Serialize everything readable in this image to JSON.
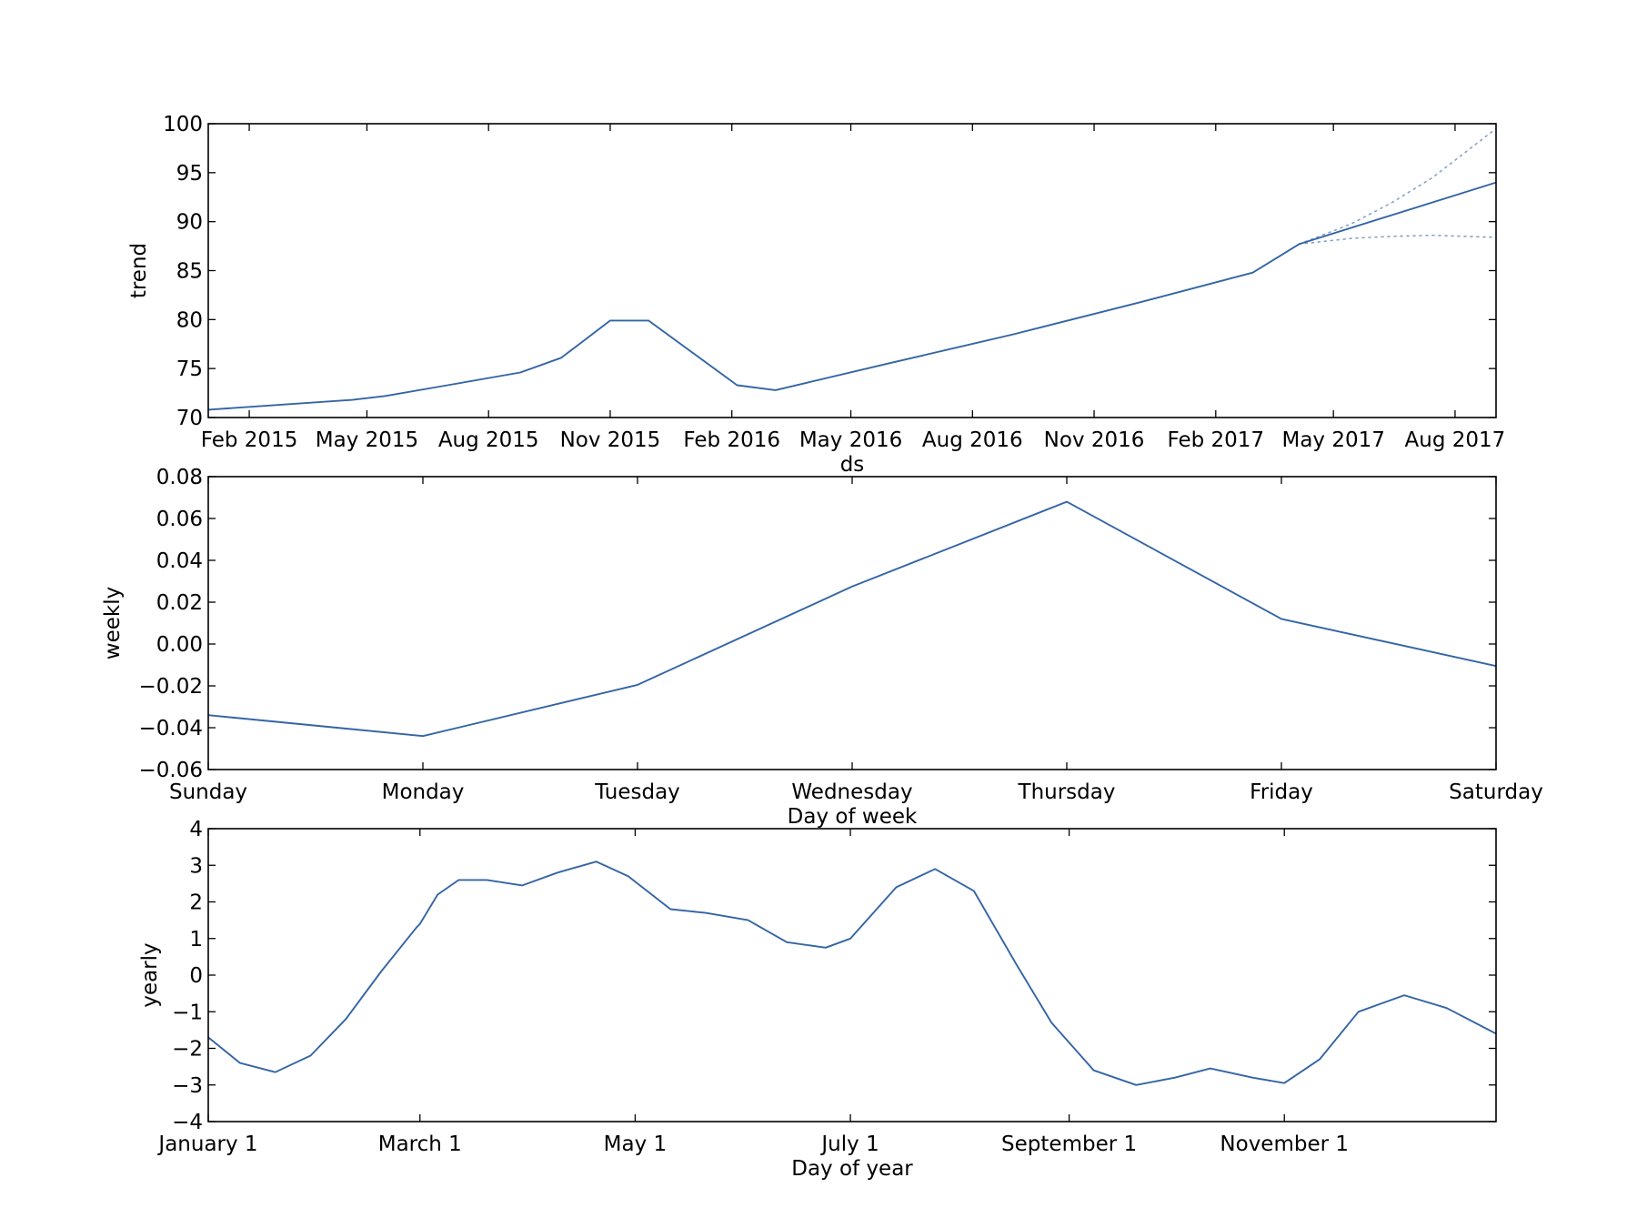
{
  "colors": {
    "line": "#3465a4",
    "bound": "#3465a4",
    "axes": "#000000"
  },
  "chart_data": [
    {
      "type": "line",
      "id": "trend",
      "xlabel": "ds",
      "ylabel": "trend",
      "x_axis": "date",
      "xlim": [
        "2015-01-01",
        "2017-09-01"
      ],
      "ylim": [
        70,
        100
      ],
      "yticks": [
        70,
        75,
        80,
        85,
        90,
        95,
        100
      ],
      "ytick_labels": [
        "70",
        "75",
        "80",
        "85",
        "90",
        "95",
        "100"
      ],
      "xticks": [
        "2015-02-01",
        "2015-05-01",
        "2015-08-01",
        "2015-11-01",
        "2016-02-01",
        "2016-05-01",
        "2016-08-01",
        "2016-11-01",
        "2017-02-01",
        "2017-05-01",
        "2017-08-01"
      ],
      "xtick_labels": [
        "Feb 2015",
        "May 2015",
        "Aug 2015",
        "Nov 2015",
        "Feb 2016",
        "May 2016",
        "Aug 2016",
        "Nov 2016",
        "Feb 2017",
        "May 2017",
        "Aug 2017"
      ],
      "grid": false,
      "series": [
        {
          "x": [
            "2015-01-01",
            "2015-04-20",
            "2015-05-15",
            "2015-07-01",
            "2015-08-25",
            "2015-09-25",
            "2015-11-01",
            "2015-11-30",
            "2016-02-05",
            "2016-03-05",
            "2016-06-01",
            "2016-09-01",
            "2016-12-01",
            "2017-03-01",
            "2017-04-05",
            "2017-09-01"
          ],
          "y": [
            70.8,
            71.8,
            72.2,
            73.3,
            74.6,
            76.1,
            79.9,
            79.9,
            73.3,
            72.8,
            75.6,
            78.5,
            81.6,
            84.8,
            87.7,
            94.0
          ]
        },
        {
          "style": "dotted",
          "x": [
            "2017-04-05",
            "2017-05-15",
            "2017-06-15",
            "2017-07-15",
            "2017-09-01"
          ],
          "y": [
            87.7,
            89.8,
            92.0,
            94.5,
            99.5
          ]
        },
        {
          "style": "dotted",
          "x": [
            "2017-04-05",
            "2017-05-15",
            "2017-06-15",
            "2017-07-15",
            "2017-09-01"
          ],
          "y": [
            87.7,
            88.3,
            88.5,
            88.6,
            88.4
          ]
        }
      ]
    },
    {
      "type": "line",
      "id": "weekly",
      "xlabel": "Day of week",
      "ylabel": "weekly",
      "categories": [
        "Sunday",
        "Monday",
        "Tuesday",
        "Wednesday",
        "Thursday",
        "Friday",
        "Saturday"
      ],
      "ylim": [
        -0.06,
        0.08
      ],
      "yticks": [
        -0.06,
        -0.04,
        -0.02,
        0.0,
        0.02,
        0.04,
        0.06,
        0.08
      ],
      "ytick_labels": [
        "−0.06",
        "−0.04",
        "−0.02",
        "0.00",
        "0.02",
        "0.04",
        "0.06",
        "0.08"
      ],
      "grid": false,
      "series": [
        {
          "values": [
            -0.034,
            -0.044,
            -0.0195,
            0.0275,
            0.068,
            0.012,
            -0.0105
          ]
        }
      ]
    },
    {
      "type": "line",
      "id": "yearly",
      "xlabel": "Day of year",
      "ylabel": "yearly",
      "x_axis": "day-of-year",
      "xlim": [
        1,
        366
      ],
      "ylim": [
        -4,
        4
      ],
      "yticks": [
        -4,
        -3,
        -2,
        -1,
        0,
        1,
        2,
        3,
        4
      ],
      "ytick_labels": [
        "−4",
        "−3",
        "−2",
        "−1",
        "0",
        "1",
        "2",
        "3",
        "4"
      ],
      "xticks": [
        1,
        61,
        122,
        183,
        245,
        306
      ],
      "xtick_labels": [
        "January 1",
        "March 1",
        "May 1",
        "July 1",
        "September 1",
        "November 1"
      ],
      "grid": false,
      "series": [
        {
          "x": [
            1,
            10,
            20,
            30,
            40,
            50,
            60,
            61,
            66,
            72,
            80,
            90,
            100,
            111,
            120,
            132,
            142,
            154,
            165,
            176,
            183,
            196,
            207,
            218,
            230,
            240,
            252,
            264,
            275,
            285,
            297,
            306,
            316,
            327,
            340,
            352,
            366
          ],
          "y": [
            -1.7,
            -2.4,
            -2.65,
            -2.2,
            -1.2,
            0.1,
            1.3,
            1.4,
            2.2,
            2.6,
            2.6,
            2.45,
            2.8,
            3.1,
            2.7,
            1.8,
            1.7,
            1.5,
            0.9,
            0.75,
            1.0,
            2.4,
            2.9,
            2.3,
            0.3,
            -1.3,
            -2.6,
            -3.0,
            -2.8,
            -2.55,
            -2.8,
            -2.95,
            -2.3,
            -1.0,
            -0.55,
            -0.9,
            -1.6
          ]
        }
      ]
    }
  ]
}
